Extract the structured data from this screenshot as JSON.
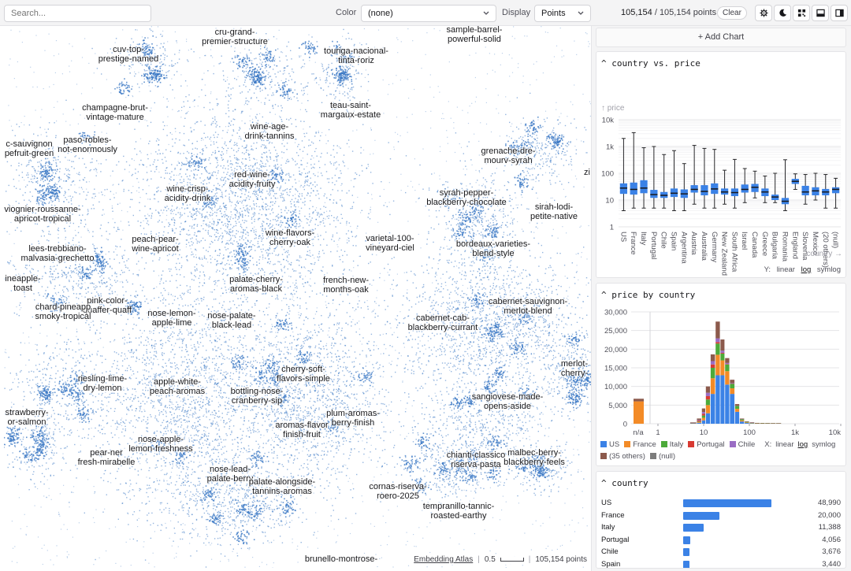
{
  "toolbar": {
    "search_placeholder": "Search...",
    "color_label": "Color",
    "color_value": "(none)",
    "display_label": "Display",
    "display_value": "Points",
    "count_selected": "105,154",
    "count_total": "/ 105,154 points",
    "clear_label": "Clear",
    "icons": [
      "gear-icon",
      "moon-icon",
      "grid-icon",
      "bottom-panel-icon",
      "sidebar-icon"
    ]
  },
  "map": {
    "point_color": "#3b78c4",
    "clusters": [
      {
        "label": "cru-grand-\npremier-structure"
      },
      {
        "label": "sample-barrel-\npowerful-solid"
      },
      {
        "label": "cuv-top-\nprestige-named"
      },
      {
        "label": "touriga-nacional-\ntinta-roriz"
      },
      {
        "label": "champagne-brut-\nvintage-mature"
      },
      {
        "label": "teau-saint-\nmargaux-estate"
      },
      {
        "label": "wine-age-\ndrink-tannins"
      },
      {
        "label": "c-sauvignon\npefruit-green"
      },
      {
        "label": "paso-robles-\nnot-enormously"
      },
      {
        "label": "grenache-dre-\nmourv-syrah"
      },
      {
        "label": "red-wine-\nacidity-fruity"
      },
      {
        "label": "wine-crisp-\nacidity-drink"
      },
      {
        "label": "syrah-pepper-\nblackberry-chocolate"
      },
      {
        "label": "viognier-roussanne-\napricot-tropical"
      },
      {
        "label": "sirah-lodi-\npetite-native"
      },
      {
        "label": "peach-pear-\nwine-apricot"
      },
      {
        "label": "wine-flavors-\ncherry-oak"
      },
      {
        "label": "varietal-100-\nvineyard-ciel"
      },
      {
        "label": "bordeaux-varieties-\nblend-style"
      },
      {
        "label": "lees-trebbiano-\nmalvasia-grechetto"
      },
      {
        "label": "ineapple-\ntoast"
      },
      {
        "label": "palate-cherry-\naromas-black"
      },
      {
        "label": "french-new-\nmonths-oak"
      },
      {
        "label": "pink-color-\nquaffer-quaff"
      },
      {
        "label": "chard-pineapp\nsmoky-tropical"
      },
      {
        "label": "cabernet-sauvignon-\nmerlot-blend"
      },
      {
        "label": "nose-lemon-\napple-lime"
      },
      {
        "label": "nose-palate-\nblack-lead"
      },
      {
        "label": "cabernet-cab-\nblackberry-currant"
      },
      {
        "label": "merlot-\ncherry-"
      },
      {
        "label": "cherry-soft-\nflavors-simple"
      },
      {
        "label": "riesling-lime-\ndry-lemon"
      },
      {
        "label": "apple-white-\npeach-aromas"
      },
      {
        "label": "bottling-nose-\ncranberry-sip"
      },
      {
        "label": "sangiovese-made-\nopens-aside"
      },
      {
        "label": "strawberry-\nor-salmon"
      },
      {
        "label": "plum-aromas-\nberry-finish"
      },
      {
        "label": "aromas-flavor\nfinish-fruit"
      },
      {
        "label": "nose-apple-\nlemon-freshness"
      },
      {
        "label": "pear-ner\nfresh-mirabelle"
      },
      {
        "label": "chianti-classico\nriserva-pasta"
      },
      {
        "label": "malbec-berry-\nblackberry-feels"
      },
      {
        "label": "nose-lead-\npalate-berry"
      },
      {
        "label": "palate-alongside-\ntannins-aromas"
      },
      {
        "label": "cornas-riserva-\nroero-2025"
      },
      {
        "label": "tempranillo-tannic-\nroasted-earthy"
      },
      {
        "label": "brunello-montrose-"
      },
      {
        "label": "zi"
      }
    ],
    "footer": {
      "brand": "Embedding Atlas",
      "scale": "0.5",
      "points": "105,154 points"
    }
  },
  "panel": {
    "add_chart": "+ Add Chart",
    "box": {
      "title": "country vs. price",
      "y_axis_label": "↑ price",
      "x_axis_label": "country →",
      "scale_label": "Y:",
      "scale_options": [
        "linear",
        "log",
        "symlog"
      ],
      "scale_selected": "log"
    },
    "hist": {
      "title": "price by country",
      "scale_label": "X:",
      "scale_options": [
        "linear",
        "log",
        "symlog"
      ],
      "scale_selected": "log",
      "legend": [
        {
          "name": "US",
          "color": "#3b82e6"
        },
        {
          "name": "France",
          "color": "#f38b27"
        },
        {
          "name": "Italy",
          "color": "#4caa3a"
        },
        {
          "name": "Portugal",
          "color": "#d83a32"
        },
        {
          "name": "Chile",
          "color": "#9a6dc4"
        },
        {
          "name": "(35 others)",
          "color": "#8c5a4c"
        },
        {
          "name": "(null)",
          "color": "#7c7c7c"
        }
      ]
    },
    "country": {
      "title": "country",
      "rows": [
        {
          "name": "US",
          "count": "48,990",
          "value": 48990
        },
        {
          "name": "France",
          "count": "20,000",
          "value": 20000
        },
        {
          "name": "Italy",
          "count": "11,388",
          "value": 11388
        },
        {
          "name": "Portugal",
          "count": "4,056",
          "value": 4056
        },
        {
          "name": "Chile",
          "count": "3,676",
          "value": 3676
        },
        {
          "name": "Spain",
          "count": "3,440",
          "value": 3440
        }
      ]
    }
  },
  "chart_data": [
    {
      "type": "box",
      "title": "country vs. price",
      "xlabel": "country",
      "ylabel": "price",
      "yscale": "log",
      "yticks": [
        "1",
        "10",
        "100",
        "1k",
        "10k"
      ],
      "ylim": [
        1,
        10000
      ],
      "categories": [
        "US",
        "France",
        "Italy",
        "Portugal",
        "Chile",
        "Spain",
        "Argentina",
        "Austria",
        "Australia",
        "Germany",
        "New Zealand",
        "South Africa",
        "Israel",
        "Canada",
        "Greece",
        "Bulgaria",
        "Romania",
        "England",
        "Slovenia",
        "Mexico",
        "(20 others)",
        "(null)"
      ],
      "boxes": [
        {
          "min": 4,
          "q1": 17,
          "median": 28,
          "q3": 42,
          "max": 2000
        },
        {
          "min": 5,
          "q1": 16,
          "median": 25,
          "q3": 45,
          "max": 3300
        },
        {
          "min": 5,
          "q1": 18,
          "median": 28,
          "q3": 55,
          "max": 900
        },
        {
          "min": 5,
          "q1": 12,
          "median": 16,
          "q3": 24,
          "max": 1000
        },
        {
          "min": 5,
          "q1": 12,
          "median": 15,
          "q3": 20,
          "max": 500
        },
        {
          "min": 4,
          "q1": 13,
          "median": 18,
          "q3": 27,
          "max": 700
        },
        {
          "min": 4,
          "q1": 12,
          "median": 17,
          "q3": 25,
          "max": 230
        },
        {
          "min": 7,
          "q1": 19,
          "median": 25,
          "q3": 36,
          "max": 1100
        },
        {
          "min": 5,
          "q1": 15,
          "median": 21,
          "q3": 36,
          "max": 850
        },
        {
          "min": 5,
          "q1": 17,
          "median": 26,
          "q3": 42,
          "max": 780
        },
        {
          "min": 7,
          "q1": 16,
          "median": 20,
          "q3": 27,
          "max": 130
        },
        {
          "min": 5,
          "q1": 14,
          "median": 19,
          "q3": 27,
          "max": 330
        },
        {
          "min": 8,
          "q1": 19,
          "median": 25,
          "q3": 38,
          "max": 150
        },
        {
          "min": 12,
          "q1": 20,
          "median": 30,
          "q3": 40,
          "max": 120
        },
        {
          "min": 8,
          "q1": 14,
          "median": 20,
          "q3": 27,
          "max": 79
        },
        {
          "min": 8,
          "q1": 10,
          "median": 13,
          "q3": 16,
          "max": 100
        },
        {
          "min": 4,
          "q1": 7,
          "median": 9,
          "q3": 12,
          "max": 320
        },
        {
          "min": 25,
          "q1": 40,
          "median": 50,
          "q3": 62,
          "max": 95
        },
        {
          "min": 7,
          "q1": 15,
          "median": 20,
          "q3": 34,
          "max": 90
        },
        {
          "min": 10,
          "q1": 15,
          "median": 22,
          "q3": 30,
          "max": 100
        },
        {
          "min": 5,
          "q1": 15,
          "median": 20,
          "q3": 26,
          "max": 90
        },
        {
          "min": 5,
          "q1": 18,
          "median": 25,
          "q3": 30,
          "max": 65
        }
      ]
    },
    {
      "type": "bar",
      "stacked": true,
      "title": "price by country",
      "xscale": "log",
      "xticks": [
        "n/a",
        "1",
        "10",
        "100",
        "1k",
        "10k"
      ],
      "yticks": [
        "0",
        "5,000",
        "10,000",
        "15,000",
        "20,000",
        "25,000",
        "30,000"
      ],
      "ylim": [
        0,
        30000
      ],
      "series_order": [
        "US",
        "France",
        "Italy",
        "Portugal",
        "Chile",
        "(35 others)",
        "(null)"
      ],
      "bins": [
        {
          "x": "n/a",
          "values": [
            0,
            6000,
            0,
            0,
            0,
            700,
            0
          ]
        },
        {
          "x": "5-7",
          "values": [
            80,
            60,
            30,
            30,
            20,
            80,
            0
          ]
        },
        {
          "x": "7-9",
          "values": [
            250,
            200,
            150,
            250,
            150,
            400,
            0
          ]
        },
        {
          "x": "9-11",
          "values": [
            900,
            700,
            600,
            500,
            450,
            950,
            0
          ]
        },
        {
          "x": "11-14",
          "values": [
            2800,
            2200,
            1500,
            900,
            900,
            1700,
            0
          ]
        },
        {
          "x": "14-18",
          "values": [
            8000,
            4200,
            2800,
            900,
            900,
            1800,
            0
          ]
        },
        {
          "x": "18-23",
          "values": [
            13000,
            5500,
            3000,
            400,
            1000,
            4500,
            0
          ]
        },
        {
          "x": "23-29",
          "values": [
            13000,
            4000,
            1800,
            200,
            600,
            3000,
            0
          ]
        },
        {
          "x": "29-37",
          "values": [
            10500,
            3600,
            1800,
            100,
            300,
            1300,
            0
          ]
        },
        {
          "x": "37-48",
          "values": [
            8000,
            1500,
            1200,
            50,
            150,
            900,
            0
          ]
        },
        {
          "x": "48-61",
          "values": [
            3200,
            800,
            800,
            20,
            50,
            400,
            0
          ]
        },
        {
          "x": "61-78",
          "values": [
            600,
            300,
            300,
            10,
            30,
            150,
            0
          ]
        },
        {
          "x": "78-100",
          "values": [
            200,
            150,
            150,
            0,
            20,
            80,
            0
          ]
        },
        {
          "x": "100-130",
          "values": [
            80,
            80,
            60,
            0,
            10,
            40,
            0
          ]
        },
        {
          "x": "130-170",
          "values": [
            30,
            40,
            25,
            0,
            0,
            15,
            0
          ]
        },
        {
          "x": "170-220",
          "values": [
            15,
            20,
            12,
            0,
            0,
            8,
            0
          ]
        },
        {
          "x": "220-290",
          "values": [
            8,
            12,
            5,
            0,
            0,
            5,
            0
          ]
        },
        {
          "x": "290-380",
          "values": [
            4,
            6,
            3,
            0,
            0,
            3,
            0
          ]
        },
        {
          "x": "380-500",
          "values": [
            2,
            4,
            2,
            0,
            0,
            2,
            0
          ]
        }
      ]
    },
    {
      "type": "bar",
      "orientation": "horizontal",
      "title": "country",
      "categories": [
        "US",
        "France",
        "Italy",
        "Portugal",
        "Chile",
        "Spain"
      ],
      "values": [
        48990,
        20000,
        11388,
        4056,
        3676,
        3440
      ]
    }
  ]
}
